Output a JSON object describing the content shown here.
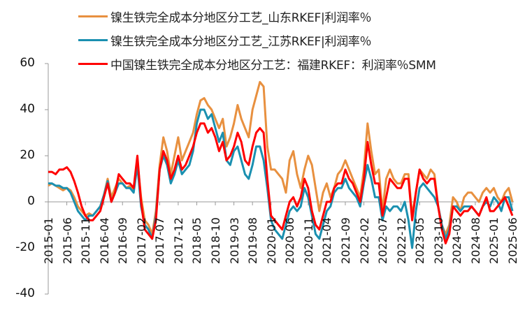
{
  "legend": [
    {
      "label": "镍生铁完全成本分地区分工艺_山东RKEF|利润率％",
      "color": "#E8903F"
    },
    {
      "label": "镍生铁完全成本分地区分工艺_江苏RKEF|利润率％",
      "color": "#1A90B0"
    },
    {
      "label": "中国镍生铁完全成本分地区分工艺：福建RKEF：利润率％SMM",
      "color": "#FF0000"
    }
  ],
  "chart_data": {
    "type": "line",
    "title": "",
    "xlabel": "",
    "ylabel": "",
    "ylim": [
      -40,
      60
    ],
    "yticks": [
      60,
      40,
      20,
      0,
      -20,
      -40
    ],
    "grid": false,
    "legend_position": "top",
    "xtick_labels": [
      "2015-01",
      "2015-06",
      "2015-11",
      "2016-04",
      "2016-09",
      "2017-02",
      "2017-07",
      "2017-12",
      "2018-05",
      "2018-10",
      "2019-03",
      "2019-08",
      "2020-01",
      "2020-06",
      "2020-11",
      "2021-04",
      "2021-09",
      "2022-02",
      "2022-07",
      "2022-12",
      "2023-05",
      "2023-10",
      "2024-03",
      "2024-08",
      "2025-01",
      "2025-06"
    ],
    "x": [
      "2015-01",
      "2015-02",
      "2015-03",
      "2015-04",
      "2015-05",
      "2015-06",
      "2015-07",
      "2015-08",
      "2015-09",
      "2015-10",
      "2015-11",
      "2015-12",
      "2016-01",
      "2016-02",
      "2016-03",
      "2016-04",
      "2016-05",
      "2016-06",
      "2016-07",
      "2016-08",
      "2016-09",
      "2016-10",
      "2016-11",
      "2016-12",
      "2017-01",
      "2017-02",
      "2017-03",
      "2017-04",
      "2017-05",
      "2017-06",
      "2017-07",
      "2017-08",
      "2017-09",
      "2017-10",
      "2017-11",
      "2017-12",
      "2018-01",
      "2018-02",
      "2018-03",
      "2018-04",
      "2018-05",
      "2018-06",
      "2018-07",
      "2018-08",
      "2018-09",
      "2018-10",
      "2018-11",
      "2018-12",
      "2019-01",
      "2019-02",
      "2019-03",
      "2019-04",
      "2019-05",
      "2019-06",
      "2019-07",
      "2019-08",
      "2019-09",
      "2019-10",
      "2019-11",
      "2019-12",
      "2020-01",
      "2020-02",
      "2020-03",
      "2020-04",
      "2020-05",
      "2020-06",
      "2020-07",
      "2020-08",
      "2020-09",
      "2020-10",
      "2020-11",
      "2020-12",
      "2021-01",
      "2021-02",
      "2021-03",
      "2021-04",
      "2021-05",
      "2021-06",
      "2021-07",
      "2021-08",
      "2021-09",
      "2021-10",
      "2021-11",
      "2021-12",
      "2022-01",
      "2022-02",
      "2022-03",
      "2022-04",
      "2022-05",
      "2022-06",
      "2022-07",
      "2022-08",
      "2022-09",
      "2022-10",
      "2022-11",
      "2022-12",
      "2023-01",
      "2023-02",
      "2023-03",
      "2023-04",
      "2023-05",
      "2023-06",
      "2023-07",
      "2023-08",
      "2023-09",
      "2023-10",
      "2023-11",
      "2023-12",
      "2024-01",
      "2024-02",
      "2024-03",
      "2024-04",
      "2024-05",
      "2024-06",
      "2024-07",
      "2024-08",
      "2024-09",
      "2024-10",
      "2024-11",
      "2024-12",
      "2025-01",
      "2025-02",
      "2025-03",
      "2025-04",
      "2025-05",
      "2025-06"
    ],
    "series": [
      {
        "name": "镍生铁完全成本分地区分工艺_山东RKEF|利润率％",
        "color": "#E8903F",
        "values": [
          7,
          8,
          7,
          6,
          5,
          6,
          5,
          2,
          -2,
          -4,
          -6,
          -5,
          -6,
          -4,
          -2,
          3,
          10,
          2,
          6,
          10,
          8,
          6,
          7,
          5,
          18,
          2,
          -8,
          -10,
          -14,
          -4,
          16,
          28,
          22,
          12,
          20,
          28,
          18,
          22,
          26,
          30,
          38,
          44,
          45,
          42,
          40,
          36,
          32,
          36,
          24,
          28,
          34,
          42,
          36,
          32,
          28,
          40,
          46,
          52,
          50,
          24,
          14,
          14,
          12,
          10,
          4,
          18,
          22,
          12,
          6,
          14,
          20,
          16,
          6,
          -4,
          4,
          8,
          2,
          6,
          12,
          14,
          18,
          14,
          10,
          6,
          2,
          14,
          34,
          22,
          12,
          14,
          -4,
          10,
          14,
          10,
          8,
          8,
          12,
          12,
          -6,
          4,
          14,
          12,
          10,
          14,
          12,
          -2,
          -10,
          -14,
          -10,
          2,
          0,
          -4,
          2,
          4,
          4,
          2,
          0,
          4,
          6,
          4,
          6,
          2,
          0,
          4,
          6,
          0
        ]
      },
      {
        "name": "镍生铁完全成本分地区分工艺_江苏RKEF|利润率％",
        "color": "#1A90B0",
        "values": [
          8,
          8,
          7,
          7,
          6,
          6,
          4,
          0,
          -4,
          -6,
          -8,
          -6,
          -6,
          -4,
          -2,
          3,
          9,
          0,
          4,
          8,
          8,
          6,
          6,
          4,
          16,
          -2,
          -10,
          -12,
          -16,
          -6,
          14,
          20,
          16,
          8,
          12,
          18,
          12,
          14,
          16,
          22,
          34,
          40,
          40,
          36,
          38,
          32,
          26,
          30,
          18,
          16,
          22,
          24,
          18,
          12,
          10,
          16,
          24,
          24,
          18,
          6,
          -8,
          -12,
          -14,
          -16,
          -10,
          -4,
          -2,
          -4,
          -2,
          6,
          2,
          -6,
          -14,
          -16,
          -10,
          -4,
          -2,
          4,
          6,
          6,
          10,
          6,
          4,
          2,
          -2,
          8,
          16,
          10,
          2,
          2,
          -8,
          -2,
          -4,
          -2,
          -2,
          -4,
          0,
          -8,
          -20,
          -4,
          6,
          8,
          6,
          4,
          2,
          -2,
          -10,
          -16,
          -12,
          -2,
          -2,
          -4,
          -2,
          -2,
          -2,
          -4,
          -6,
          -2,
          0,
          -2,
          2,
          0,
          -4,
          2,
          2,
          -4
        ]
      },
      {
        "name": "中国镍生铁完全成本分地区分工艺：福建RKEF：利润率％SMM",
        "color": "#FF0000",
        "values": [
          13,
          13,
          12,
          14,
          14,
          15,
          13,
          9,
          4,
          -2,
          -6,
          -8,
          -8,
          -6,
          -4,
          2,
          8,
          0,
          4,
          12,
          10,
          8,
          8,
          6,
          20,
          0,
          -12,
          -14,
          -16,
          -8,
          14,
          22,
          18,
          10,
          14,
          20,
          14,
          16,
          20,
          24,
          30,
          34,
          34,
          30,
          32,
          28,
          22,
          26,
          18,
          20,
          24,
          30,
          26,
          18,
          16,
          24,
          30,
          32,
          30,
          10,
          -6,
          -8,
          -10,
          -12,
          -6,
          0,
          2,
          -2,
          2,
          10,
          6,
          -4,
          -10,
          -12,
          -6,
          0,
          0,
          6,
          8,
          8,
          14,
          10,
          8,
          4,
          0,
          10,
          26,
          16,
          8,
          8,
          -6,
          2,
          10,
          8,
          6,
          6,
          10,
          10,
          -8,
          4,
          14,
          10,
          8,
          10,
          10,
          -2,
          -12,
          -18,
          -14,
          -2,
          -4,
          -6,
          -4,
          -4,
          -2,
          -4,
          -6,
          -2,
          2,
          -4,
          -4,
          -2,
          0,
          2,
          -2,
          -6
        ]
      }
    ]
  }
}
